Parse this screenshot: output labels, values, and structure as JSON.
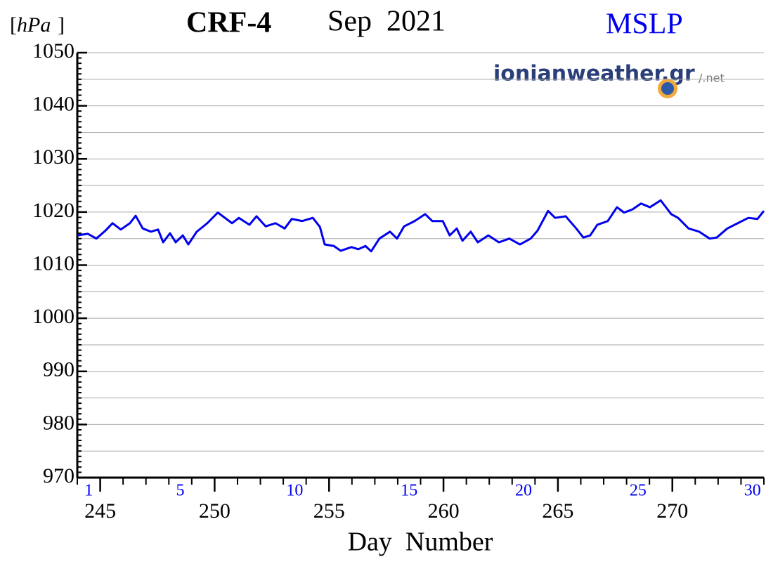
{
  "chart_data": {
    "type": "line",
    "title": "CRF-4",
    "subtitle": "Sep  2021",
    "variable": "MSLP",
    "y_unit": "hPa",
    "watermark": "ionianweather.gr",
    "watermark_suffix": "/.net",
    "x_label": "Day  Number",
    "xlim": [
      244,
      274
    ],
    "xticks": [
      245,
      250,
      255,
      260,
      265,
      270
    ],
    "xminor_step": 1,
    "ylim": [
      970,
      1050
    ],
    "yticks": [
      970,
      980,
      990,
      1000,
      1010,
      1020,
      1030,
      1040,
      1050
    ],
    "yminor_step": 1,
    "ygrid_step": 5,
    "grid": true,
    "day_labels": [
      {
        "value": 244.5,
        "label": "1"
      },
      {
        "value": 248.5,
        "label": "5"
      },
      {
        "value": 253.5,
        "label": "10"
      },
      {
        "value": 258.5,
        "label": "15"
      },
      {
        "value": 263.5,
        "label": "20"
      },
      {
        "value": 268.5,
        "label": "25"
      },
      {
        "value": 273.5,
        "label": "30"
      }
    ],
    "series": [
      {
        "name": "MSLP",
        "color": "#0000ee",
        "x": [
          244.0,
          244.46,
          244.83,
          245.23,
          245.54,
          245.9,
          246.3,
          246.55,
          246.86,
          247.22,
          247.53,
          247.75,
          248.05,
          248.3,
          248.61,
          248.85,
          249.22,
          249.68,
          250.14,
          250.45,
          250.76,
          251.06,
          251.52,
          251.83,
          252.23,
          252.66,
          253.06,
          253.37,
          253.83,
          254.29,
          254.6,
          254.81,
          255.21,
          255.51,
          255.98,
          256.28,
          256.59,
          256.84,
          257.2,
          257.66,
          257.97,
          258.28,
          258.74,
          259.2,
          259.51,
          259.97,
          260.27,
          260.58,
          260.83,
          261.19,
          261.5,
          261.96,
          262.42,
          262.88,
          263.34,
          263.81,
          264.11,
          264.57,
          264.88,
          265.34,
          265.8,
          266.11,
          266.41,
          266.72,
          267.18,
          267.58,
          267.89,
          268.26,
          268.63,
          269.02,
          269.49,
          269.95,
          270.25,
          270.71,
          271.17,
          271.63,
          271.94,
          272.4,
          272.86,
          273.32,
          273.72,
          274.0
        ],
        "values": [
          1015.6,
          1015.9,
          1015.0,
          1016.5,
          1017.9,
          1016.7,
          1017.9,
          1019.3,
          1016.9,
          1016.3,
          1016.7,
          1014.3,
          1016.0,
          1014.3,
          1015.6,
          1013.9,
          1016.3,
          1017.9,
          1019.9,
          1018.9,
          1017.9,
          1018.9,
          1017.6,
          1019.2,
          1017.3,
          1017.9,
          1016.9,
          1018.7,
          1018.3,
          1018.9,
          1017.2,
          1013.9,
          1013.6,
          1012.7,
          1013.4,
          1013.0,
          1013.6,
          1012.6,
          1015.0,
          1016.3,
          1015.0,
          1017.3,
          1018.3,
          1019.6,
          1018.3,
          1018.3,
          1015.6,
          1016.9,
          1014.6,
          1016.3,
          1014.3,
          1015.6,
          1014.3,
          1015.0,
          1013.9,
          1015.0,
          1016.5,
          1020.2,
          1018.9,
          1019.2,
          1016.9,
          1015.2,
          1015.6,
          1017.6,
          1018.3,
          1020.9,
          1019.9,
          1020.5,
          1021.6,
          1020.9,
          1022.2,
          1019.6,
          1018.9,
          1016.9,
          1016.3,
          1015.0,
          1015.2,
          1016.9,
          1017.9,
          1018.9,
          1018.7,
          1020.2
        ]
      }
    ]
  }
}
